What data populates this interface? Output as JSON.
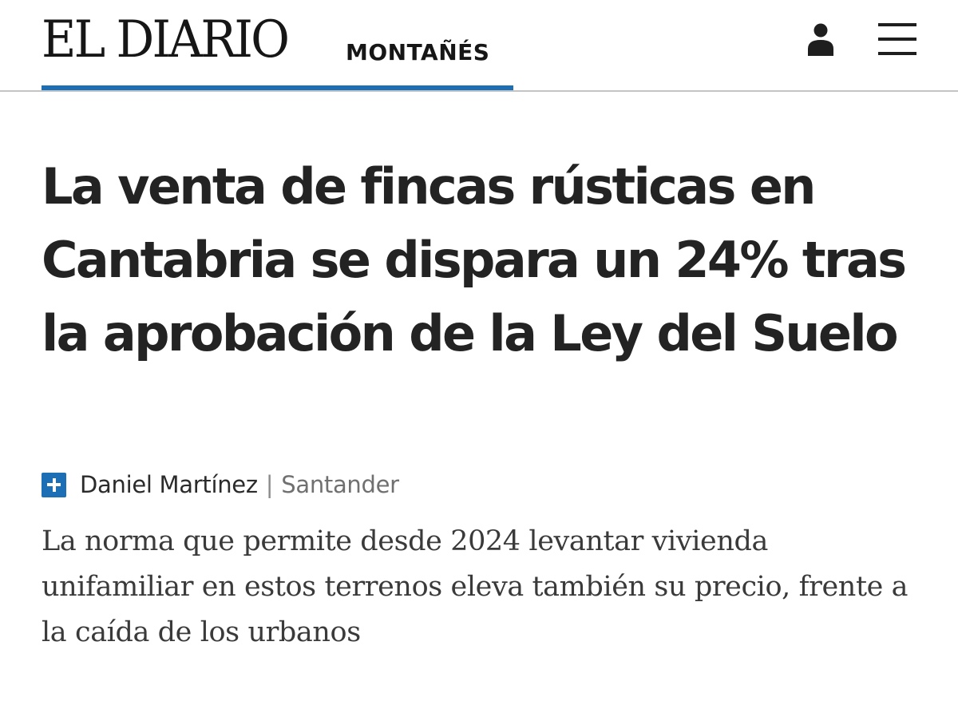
{
  "header": {
    "logo_main": "EL DIARIO",
    "logo_sub": "MONTAÑÉS",
    "accent_color": "#1c6fb5",
    "icons": {
      "account": "user-icon",
      "menu": "hamburger-menu-icon"
    }
  },
  "article": {
    "headline": "La venta de fincas rústicas en Cantabria se dispara un 24% tras la aprobación de la Ley del Suelo",
    "premium_icon": "plus-icon",
    "author": "Daniel Martínez",
    "separator": "|",
    "location": "Santander",
    "subtitle": "La norma que permite desde 2024 levantar vivienda unifamiliar en estos terrenos eleva también su precio, frente a la caída de los urbanos"
  }
}
